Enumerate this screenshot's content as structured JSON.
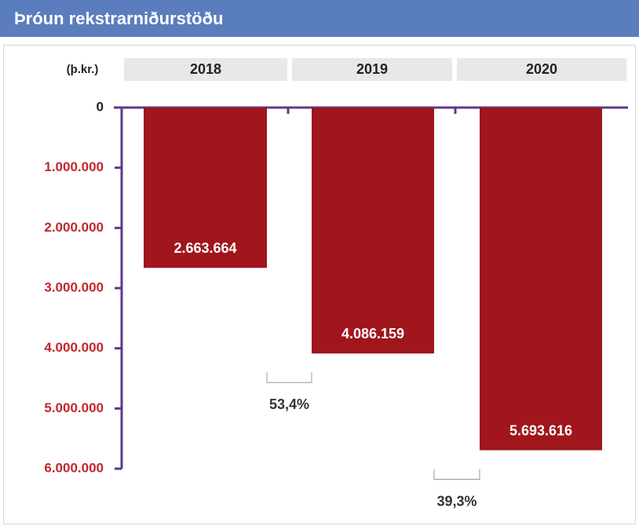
{
  "chart_data": {
    "type": "bar",
    "title": "Þróun rekstrarniðurstöðu",
    "y_label": "(þ.kr.)",
    "categories": [
      "2018",
      "2019",
      "2020"
    ],
    "values": [
      2663664,
      4086159,
      5693616
    ],
    "value_labels": [
      "2.663.664",
      "4.086.159",
      "5.693.616"
    ],
    "color": "#a0161c",
    "ylim": [
      0,
      6000000
    ],
    "inverted": true,
    "yticks": [
      0,
      {
        "value": 1000000,
        "label": "1.000.000"
      },
      {
        "value": 2000000,
        "label": "2.000.000"
      },
      {
        "value": 3000000,
        "label": "3.000.000"
      },
      {
        "value": 4000000,
        "label": "4.000.000"
      },
      {
        "value": 5000000,
        "label": "5.000.000"
      },
      {
        "value": 6000000,
        "label": "6.000.000"
      }
    ],
    "annotations": [
      "53,4%",
      "39,3%"
    ]
  }
}
